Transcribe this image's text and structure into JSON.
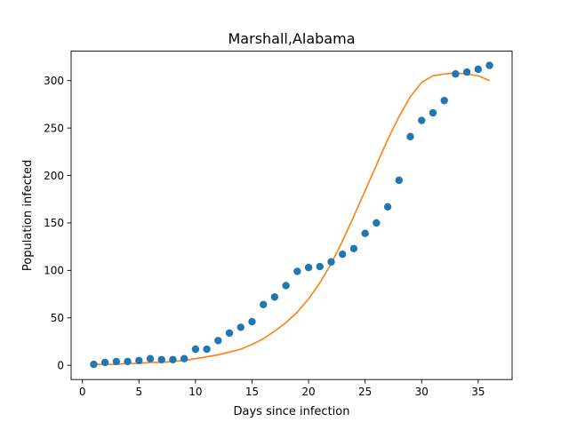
{
  "chart_data": {
    "type": "scatter",
    "title": "Marshall,Alabama",
    "xlabel": "Days since infection",
    "ylabel": "Population infected",
    "xlim": [
      -1,
      38
    ],
    "ylim": [
      -15,
      331
    ],
    "xticks": [
      0,
      5,
      10,
      15,
      20,
      25,
      30,
      35
    ],
    "yticks": [
      0,
      50,
      100,
      150,
      200,
      250,
      300
    ],
    "grid": false,
    "legend": "none",
    "series": [
      {
        "kind": "scatter",
        "color": "#1f77b4",
        "x": [
          1,
          2,
          3,
          4,
          5,
          6,
          7,
          8,
          9,
          10,
          11,
          12,
          13,
          14,
          15,
          16,
          17,
          18,
          19,
          20,
          21,
          22,
          23,
          24,
          25,
          26,
          27,
          28,
          29,
          30,
          31,
          32,
          33,
          34,
          35,
          36
        ],
        "y": [
          1,
          3,
          4,
          4,
          5,
          7,
          6,
          6,
          7,
          17,
          17,
          26,
          34,
          40,
          46,
          64,
          72,
          84,
          99,
          103,
          104,
          109,
          117,
          123,
          139,
          150,
          167,
          195,
          241,
          258,
          266,
          279,
          307,
          309,
          312,
          316
        ]
      },
      {
        "kind": "line",
        "color": "#ff7f0e",
        "x": [
          1,
          2,
          3,
          4,
          5,
          6,
          7,
          8,
          9,
          10,
          11,
          12,
          13,
          14,
          15,
          16,
          17,
          18,
          19,
          20,
          21,
          22,
          23,
          24,
          25,
          26,
          27,
          28,
          29,
          30,
          31,
          32,
          33,
          34,
          35,
          36
        ],
        "y": [
          1,
          1,
          1,
          2,
          2,
          3,
          3,
          4,
          5,
          7,
          9,
          11,
          14,
          17,
          22,
          28,
          36,
          45,
          56,
          70,
          87,
          107,
          131,
          157,
          184,
          211,
          238,
          262,
          283,
          298,
          305,
          307,
          308,
          307,
          305,
          300
        ]
      }
    ]
  }
}
